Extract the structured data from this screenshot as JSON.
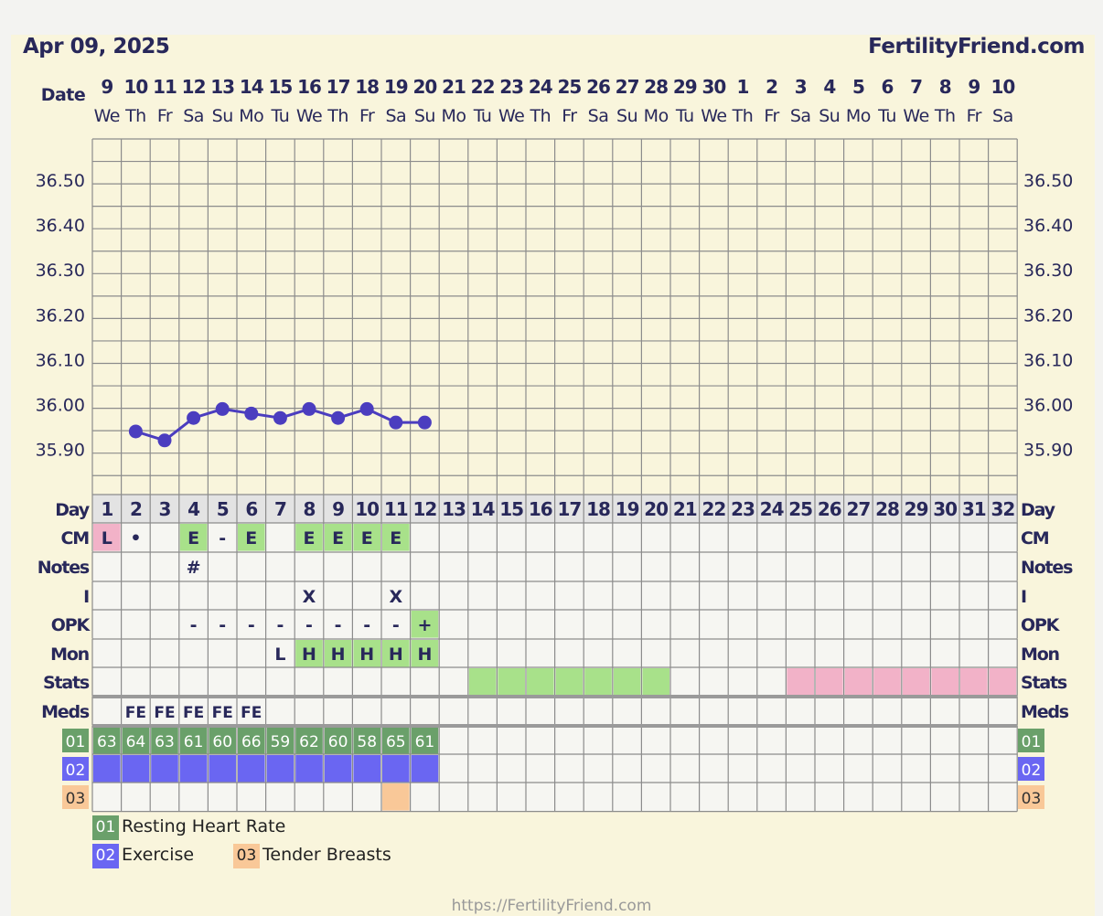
{
  "header": {
    "date": "Apr 09, 2025",
    "site": "FertilityFriend.com"
  },
  "footer": {
    "url": "https://FertilityFriend.com"
  },
  "row_labels": {
    "date": "Date",
    "day": "Day",
    "cm": "CM",
    "notes": "Notes",
    "i": "I",
    "opk": "OPK",
    "mon": "Mon",
    "stats": "Stats",
    "meds": "Meds",
    "c1": "01",
    "c2": "02",
    "c3": "03"
  },
  "dates": [
    "9",
    "10",
    "11",
    "12",
    "13",
    "14",
    "15",
    "16",
    "17",
    "18",
    "19",
    "20",
    "21",
    "22",
    "23",
    "24",
    "25",
    "26",
    "27",
    "28",
    "29",
    "30",
    "1",
    "2",
    "3",
    "4",
    "5",
    "6",
    "7",
    "8",
    "9",
    "10"
  ],
  "weekdays": [
    "We",
    "Th",
    "Fr",
    "Sa",
    "Su",
    "Mo",
    "Tu",
    "We",
    "Th",
    "Fr",
    "Sa",
    "Su",
    "Mo",
    "Tu",
    "We",
    "Th",
    "Fr",
    "Sa",
    "Su",
    "Mo",
    "Tu",
    "We",
    "Th",
    "Fr",
    "Sa",
    "Su",
    "Mo",
    "Tu",
    "We",
    "Th",
    "Fr",
    "Sa"
  ],
  "days": [
    "1",
    "2",
    "3",
    "4",
    "5",
    "6",
    "7",
    "8",
    "9",
    "10",
    "11",
    "12",
    "13",
    "14",
    "15",
    "16",
    "17",
    "18",
    "19",
    "20",
    "21",
    "22",
    "23",
    "24",
    "25",
    "26",
    "27",
    "28",
    "29",
    "30",
    "31",
    "32"
  ],
  "rows": {
    "cm": [
      "L",
      "•",
      "",
      "E",
      "-",
      "E",
      "",
      "E",
      "E",
      "E",
      "E",
      "",
      "",
      "",
      "",
      "",
      "",
      "",
      "",
      "",
      "",
      "",
      "",
      "",
      "",
      "",
      "",
      "",
      "",
      "",
      "",
      ""
    ],
    "notes": [
      "",
      "",
      "",
      "#",
      "",
      "",
      "",
      "",
      "",
      "",
      "",
      "",
      "",
      "",
      "",
      "",
      "",
      "",
      "",
      "",
      "",
      "",
      "",
      "",
      "",
      "",
      "",
      "",
      "",
      "",
      "",
      ""
    ],
    "i": [
      "",
      "",
      "",
      "",
      "",
      "",
      "",
      "X",
      "",
      "",
      "X",
      "",
      "",
      "",
      "",
      "",
      "",
      "",
      "",
      "",
      "",
      "",
      "",
      "",
      "",
      "",
      "",
      "",
      "",
      "",
      "",
      ""
    ],
    "opk": [
      "",
      "",
      "",
      "-",
      "-",
      "-",
      "-",
      "-",
      "-",
      "-",
      "-",
      "+",
      "",
      "",
      "",
      "",
      "",
      "",
      "",
      "",
      "",
      "",
      "",
      "",
      "",
      "",
      "",
      "",
      "",
      "",
      "",
      ""
    ],
    "mon": [
      "",
      "",
      "",
      "",
      "",
      "",
      "L",
      "H",
      "H",
      "H",
      "H",
      "H",
      "",
      "",
      "",
      "",
      "",
      "",
      "",
      "",
      "",
      "",
      "",
      "",
      "",
      "",
      "",
      "",
      "",
      "",
      "",
      ""
    ],
    "stats": [
      "",
      "",
      "",
      "",
      "",
      "",
      "",
      "",
      "",
      "",
      "",
      "",
      "",
      "g",
      "g",
      "g",
      "g",
      "g",
      "g",
      "g",
      "",
      "",
      "",
      "",
      "p",
      "p",
      "p",
      "p",
      "p",
      "p",
      "p",
      "p"
    ],
    "meds": [
      "",
      "FE",
      "FE",
      "FE",
      "FE",
      "FE",
      "",
      "",
      "",
      "",
      "",
      "",
      "",
      "",
      "",
      "",
      "",
      "",
      "",
      "",
      "",
      "",
      "",
      "",
      "",
      "",
      "",
      "",
      "",
      "",
      "",
      ""
    ],
    "c1": [
      "63",
      "64",
      "63",
      "61",
      "60",
      "66",
      "59",
      "62",
      "60",
      "58",
      "65",
      "61",
      "",
      "",
      "",
      "",
      "",
      "",
      "",
      "",
      "",
      "",
      "",
      "",
      "",
      "",
      "",
      "",
      "",
      "",
      "",
      ""
    ],
    "c2": [
      "x",
      "x",
      "x",
      "x",
      "x",
      "x",
      "x",
      "x",
      "x",
      "x",
      "x",
      "x",
      "",
      "",
      "",
      "",
      "",
      "",
      "",
      "",
      "",
      "",
      "",
      "",
      "",
      "",
      "",
      "",
      "",
      "",
      "",
      ""
    ],
    "c3": [
      "",
      "",
      "",
      "",
      "",
      "",
      "",
      "",
      "",
      "",
      "x",
      "",
      "",
      "",
      "",
      "",
      "",
      "",
      "",
      "",
      "",
      "",
      "",
      "",
      "",
      "",
      "",
      "",
      "",
      "",
      "",
      ""
    ]
  },
  "chart_data": {
    "type": "line",
    "x": [
      2,
      3,
      4,
      5,
      6,
      7,
      8,
      9,
      10,
      11,
      12
    ],
    "values": [
      35.94,
      35.92,
      35.97,
      35.99,
      35.98,
      35.97,
      35.99,
      35.97,
      35.99,
      35.96,
      35.96
    ],
    "xlabel": "Day",
    "ylim": [
      35.8,
      36.6
    ],
    "yticks": [
      "36.50",
      "36.40",
      "36.30",
      "36.20",
      "36.10",
      "36.00",
      "35.90"
    ],
    "ytick_values": [
      36.5,
      36.4,
      36.3,
      36.2,
      36.1,
      36.0,
      35.9
    ],
    "grid": true
  },
  "legend": {
    "items": [
      {
        "code": "01",
        "label": "Resting Heart Rate"
      },
      {
        "code": "02",
        "label": "Exercise"
      },
      {
        "code": "03",
        "label": "Tender Breasts"
      }
    ]
  },
  "colors": {
    "line": "#4b3dbf",
    "green": "#a8e18a",
    "pink": "#f2b2c8",
    "heart": "#6aa06a",
    "exercise": "#6a66f2",
    "tender": "#f9c898",
    "grid": "#8c8c8c",
    "label": "#28285a"
  }
}
